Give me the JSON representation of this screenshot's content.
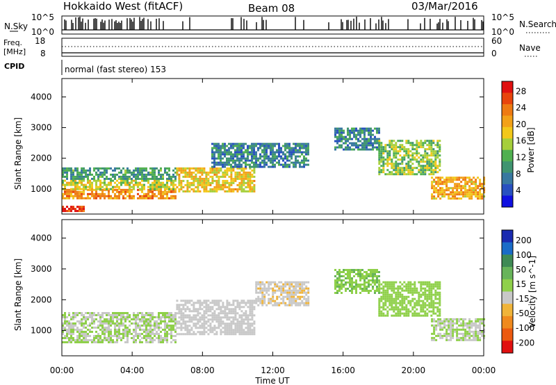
{
  "header": {
    "title": "Hokkaido West (fitACF)",
    "beam": "Beam 08",
    "date": "03/Mar/2016"
  },
  "noise_panel": {
    "left_label": "N.Sky",
    "right_label": "N.Search",
    "left_ticks": [
      "10^5",
      "10^0"
    ],
    "right_ticks": [
      "10^5",
      "10^0"
    ]
  },
  "freq_panel": {
    "left_label_top": "Freq.",
    "left_label_bottom": "[MHz]",
    "left_ticks": [
      "18",
      "8"
    ],
    "right_label": "Nave",
    "right_ticks": [
      "60",
      "0"
    ]
  },
  "cpid_panel": {
    "label": "CPID",
    "text": "normal (fast stereo) 153"
  },
  "chart_data": [
    {
      "type": "heatmap",
      "name": "power",
      "xlabel": "",
      "ylabel": "Slant Range [km]",
      "xlim": [
        0,
        24
      ],
      "ylim": [
        180,
        4600
      ],
      "x_ticks": [
        "00:00",
        "04:00",
        "08:00",
        "12:00",
        "16:00",
        "20:00",
        "00:00"
      ],
      "y_ticks": [
        "1000",
        "2000",
        "3000",
        "4000"
      ],
      "colorbar": {
        "label": "Power [dB]",
        "ticks": [
          "4",
          "8",
          "12",
          "16",
          "20",
          "24",
          "28"
        ],
        "range": [
          0,
          30
        ],
        "colors": [
          "#1010e0",
          "#2850c0",
          "#3878a0",
          "#3f9470",
          "#50b050",
          "#a6cf3b",
          "#f2c81a",
          "#f2a118",
          "#ee7a12",
          "#e8440c",
          "#e01010"
        ]
      },
      "echo_regions": [
        {
          "from_ut": 0.0,
          "to_ut": 1.2,
          "lo_km": 250,
          "hi_km": 450,
          "power_db": 27
        },
        {
          "from_ut": 0.0,
          "to_ut": 6.5,
          "lo_km": 700,
          "hi_km": 1000,
          "power_db": 22
        },
        {
          "from_ut": 0.0,
          "to_ut": 6.5,
          "lo_km": 1000,
          "hi_km": 1300,
          "power_db": 16
        },
        {
          "from_ut": 0.0,
          "to_ut": 6.5,
          "lo_km": 1300,
          "hi_km": 1700,
          "power_db": 10
        },
        {
          "from_ut": 6.5,
          "to_ut": 11.0,
          "lo_km": 900,
          "hi_km": 1700,
          "power_db": 18
        },
        {
          "from_ut": 8.5,
          "to_ut": 14.0,
          "lo_km": 1700,
          "hi_km": 2500,
          "power_db": 8
        },
        {
          "from_ut": 15.5,
          "to_ut": 18.0,
          "lo_km": 2300,
          "hi_km": 3000,
          "power_db": 8
        },
        {
          "from_ut": 18.0,
          "to_ut": 21.5,
          "lo_km": 1500,
          "hi_km": 2600,
          "power_db": 14
        },
        {
          "from_ut": 21.0,
          "to_ut": 24.0,
          "lo_km": 700,
          "hi_km": 1400,
          "power_db": 20
        }
      ]
    },
    {
      "type": "heatmap",
      "name": "velocity",
      "xlabel": "Time UT",
      "ylabel": "Slant Range [km]",
      "xlim": [
        0,
        24
      ],
      "ylim": [
        180,
        4600
      ],
      "x_ticks": [
        "00:00",
        "04:00",
        "08:00",
        "12:00",
        "16:00",
        "20:00",
        "00:00"
      ],
      "y_ticks": [
        "1000",
        "2000",
        "3000",
        "4000"
      ],
      "colorbar": {
        "label": "Velocity [m s^-1]",
        "ticks": [
          "200",
          "100",
          "50",
          "15",
          "-15",
          "-50",
          "-100",
          "-200"
        ],
        "range": [
          -250,
          250
        ],
        "colors": [
          "#1a2ab0",
          "#1a6cc8",
          "#3f8a55",
          "#68b45a",
          "#8fd04a",
          "#c8c8c8",
          "#f0b43a",
          "#f08a1e",
          "#ec5a10",
          "#e01010"
        ]
      },
      "echo_regions": [
        {
          "from_ut": 0.0,
          "to_ut": 6.5,
          "lo_km": 600,
          "hi_km": 1600,
          "velocity_ms": 0
        },
        {
          "from_ut": 6.5,
          "to_ut": 11.0,
          "lo_km": 900,
          "hi_km": 2000,
          "velocity_ms": -30
        },
        {
          "from_ut": 11.0,
          "to_ut": 14.0,
          "lo_km": 1800,
          "hi_km": 2600,
          "velocity_ms": -40
        },
        {
          "from_ut": 15.5,
          "to_ut": 18.0,
          "lo_km": 2200,
          "hi_km": 3000,
          "velocity_ms": 40
        },
        {
          "from_ut": 18.0,
          "to_ut": 21.5,
          "lo_km": 1500,
          "hi_km": 2600,
          "velocity_ms": 20
        },
        {
          "from_ut": 21.0,
          "to_ut": 24.0,
          "lo_km": 700,
          "hi_km": 1400,
          "velocity_ms": 0
        }
      ]
    }
  ]
}
